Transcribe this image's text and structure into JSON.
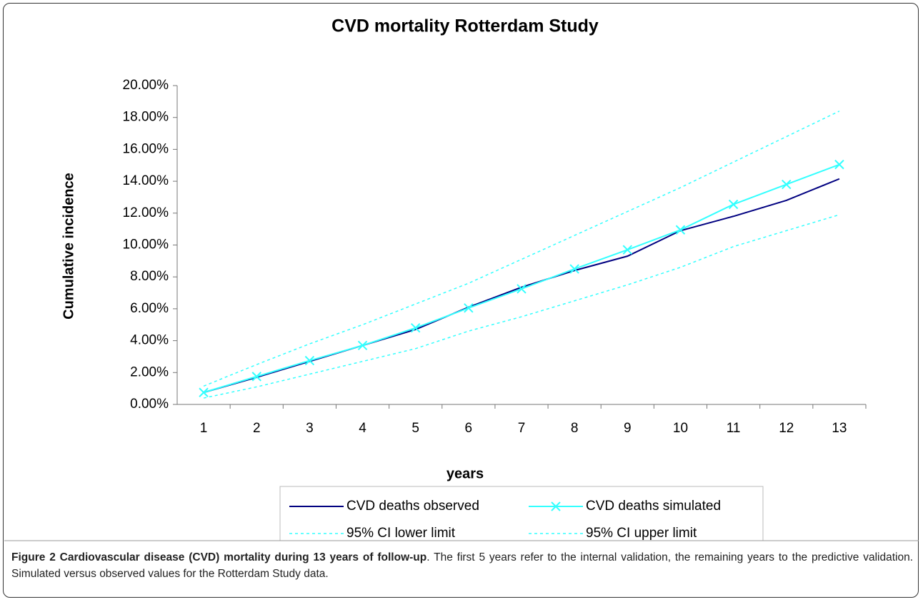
{
  "chart_data": {
    "type": "line",
    "title": "CVD mortality Rotterdam Study",
    "x_label": "years",
    "y_label": "Cumulative incidence",
    "categories": [
      1,
      2,
      3,
      4,
      5,
      6,
      7,
      8,
      9,
      10,
      11,
      12,
      13
    ],
    "series": [
      {
        "name": "CVD deaths observed",
        "color": "#000080",
        "dash": false,
        "marker": null,
        "values": [
          0.75,
          1.7,
          2.7,
          3.7,
          4.7,
          6.1,
          7.35,
          8.4,
          9.3,
          10.9,
          11.8,
          12.8,
          14.15
        ]
      },
      {
        "name": "CVD deaths simulated",
        "color": "#33ffff",
        "dash": false,
        "marker": "x",
        "values": [
          0.75,
          1.75,
          2.75,
          3.7,
          4.8,
          6.05,
          7.25,
          8.5,
          9.7,
          10.95,
          12.55,
          13.8,
          15.05
        ]
      },
      {
        "name": "95% CI lower limit",
        "color": "#33ffff",
        "dash": true,
        "marker": null,
        "values": [
          0.4,
          1.1,
          1.9,
          2.7,
          3.5,
          4.6,
          5.5,
          6.5,
          7.5,
          8.6,
          9.9,
          10.9,
          11.9
        ]
      },
      {
        "name": "95% CI upper limit",
        "color": "#33ffff",
        "dash": true,
        "marker": null,
        "values": [
          1.15,
          2.5,
          3.8,
          5.0,
          6.3,
          7.6,
          9.1,
          10.6,
          12.1,
          13.6,
          15.2,
          16.8,
          18.4
        ]
      }
    ],
    "ylim": [
      0,
      20
    ],
    "yticks": [
      {
        "value": 0,
        "label": "0.00%"
      },
      {
        "value": 2,
        "label": "2.00%"
      },
      {
        "value": 4,
        "label": "4.00%"
      },
      {
        "value": 6,
        "label": "6.00%"
      },
      {
        "value": 8,
        "label": "8.00%"
      },
      {
        "value": 10,
        "label": "10.00%"
      },
      {
        "value": 12,
        "label": "12.00%"
      },
      {
        "value": 14,
        "label": "14.00%"
      },
      {
        "value": 16,
        "label": "16.00%"
      },
      {
        "value": 18,
        "label": "18.00%"
      },
      {
        "value": 20,
        "label": "20.00%"
      }
    ],
    "grid": false
  },
  "caption": {
    "title": "Figure 2 Cardiovascular disease (CVD) mortality during 13 years of follow-up",
    "text": ". The first 5 years refer to the internal validation, the remaining years to the predictive validation. Simulated versus observed values for the Rotterdam Study data."
  }
}
